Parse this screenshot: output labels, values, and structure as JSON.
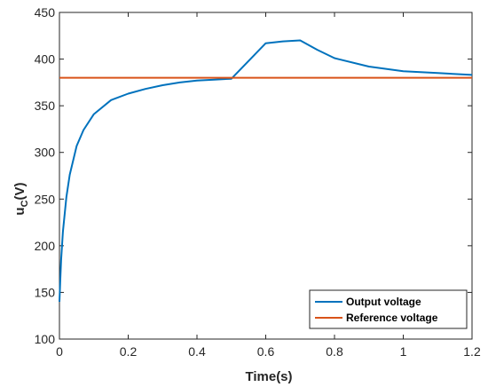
{
  "chart_data": {
    "type": "line",
    "xlabel": "Time(s)",
    "ylabel": "u_C(V)",
    "ylabel_main": "u",
    "ylabel_sub": "C",
    "ylabel_unit": "(V)",
    "xlim": [
      0,
      1.2
    ],
    "ylim": [
      100,
      450
    ],
    "xticks": [
      0,
      0.2,
      0.4,
      0.6,
      0.8,
      1,
      1.2
    ],
    "xtick_labels": [
      "0",
      "0.2",
      "0.4",
      "0.6",
      "0.8",
      "1",
      "1.2"
    ],
    "yticks": [
      100,
      150,
      200,
      250,
      300,
      350,
      400,
      450
    ],
    "ytick_labels": [
      "100",
      "150",
      "200",
      "250",
      "300",
      "350",
      "400",
      "450"
    ],
    "grid": false,
    "legend_position": "bottom-right",
    "series": [
      {
        "name": "Output voltage",
        "color": "#0072BD",
        "x": [
          0,
          0.002,
          0.005,
          0.01,
          0.02,
          0.03,
          0.05,
          0.07,
          0.1,
          0.15,
          0.2,
          0.25,
          0.3,
          0.35,
          0.4,
          0.45,
          0.5,
          0.6,
          0.65,
          0.7,
          0.75,
          0.8,
          0.9,
          1.0,
          1.1,
          1.2
        ],
        "y": [
          140,
          160,
          185,
          215,
          252,
          276,
          307,
          324,
          341,
          356,
          363,
          368,
          372,
          375,
          377,
          378,
          379,
          417,
          419,
          420,
          410,
          401,
          392,
          387,
          385,
          383
        ]
      },
      {
        "name": "Reference voltage",
        "color": "#D95319",
        "x": [
          0,
          1.2
        ],
        "y": [
          380,
          380
        ]
      }
    ]
  }
}
